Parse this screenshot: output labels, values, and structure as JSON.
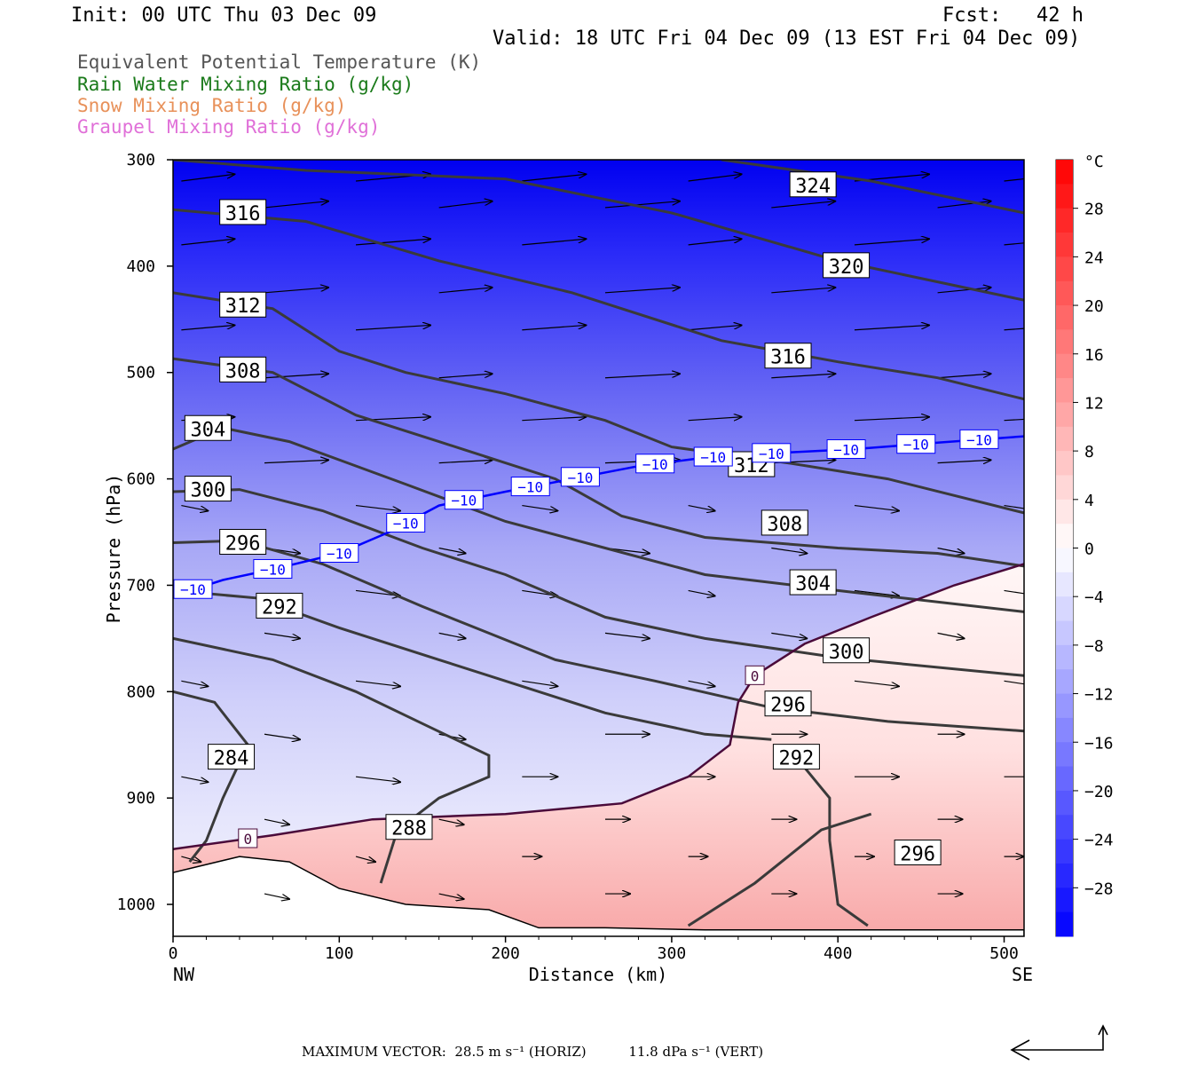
{
  "header": {
    "init": "Init: 00 UTC Thu 03 Dec 09",
    "fcst": "Fcst:   42 h",
    "valid": "Valid: 18 UTC Fri 04 Dec 09 (13 EST Fri 04 Dec 09)"
  },
  "legend": [
    {
      "label": "Equivalent Potential Temperature (K)",
      "color": "#555555"
    },
    {
      "label": "Rain Water Mixing Ratio (g/kg)",
      "color": "#1a7a1a"
    },
    {
      "label": "Snow Mixing Ratio (g/kg)",
      "color": "#e8915a"
    },
    {
      "label": "Graupel Mixing Ratio (g/kg)",
      "color": "#e070d8"
    }
  ],
  "chart_data": {
    "type": "contour cross-section",
    "xlabel": "Distance (km)",
    "ylabel": "Pressure (hPa)",
    "xlim": [
      0,
      512
    ],
    "ylim": [
      1030,
      300
    ],
    "x_ticks": [
      0,
      100,
      200,
      300,
      400,
      500
    ],
    "y_ticks": [
      300,
      400,
      500,
      600,
      700,
      800,
      900,
      1000
    ],
    "x_end_labels": {
      "left": "NW",
      "right": "SE"
    },
    "colorbar": {
      "unit": "°C",
      "tick_labels": [
        "28",
        "24",
        "20",
        "16",
        "12",
        "8",
        "4",
        "0",
        "−4",
        "−8",
        "−12",
        "−16",
        "−20",
        "−24",
        "−28"
      ],
      "range": [
        -32,
        32
      ],
      "cold_color": "#0000ff",
      "warm_color": "#ff0000"
    },
    "theta_e_contours": [
      {
        "level": 324,
        "label_at": [
          385,
          324
        ],
        "points": [
          [
            330,
            300
          ],
          [
            420,
            320
          ],
          [
            512,
            350
          ]
        ]
      },
      {
        "level": 320,
        "label_at": [
          405,
          400
        ],
        "points": [
          [
            0,
            300
          ],
          [
            80,
            310
          ],
          [
            200,
            318
          ],
          [
            300,
            350
          ],
          [
            400,
            395
          ],
          [
            512,
            432
          ]
        ]
      },
      {
        "level": 316,
        "label_at": [
          42,
          350
        ],
        "points": [
          [
            0,
            347
          ],
          [
            80,
            358
          ],
          [
            160,
            395
          ],
          [
            240,
            425
          ],
          [
            330,
            470
          ],
          [
            400,
            490
          ],
          [
            460,
            505
          ],
          [
            512,
            525
          ]
        ]
      },
      {
        "level": 316,
        "label_at": [
          370,
          485
        ],
        "points": []
      },
      {
        "level": 312,
        "label_at": [
          42,
          437
        ],
        "points": [
          [
            0,
            425
          ],
          [
            60,
            440
          ],
          [
            100,
            480
          ],
          [
            140,
            500
          ],
          [
            200,
            520
          ],
          [
            260,
            545
          ],
          [
            300,
            570
          ],
          [
            370,
            585
          ],
          [
            430,
            600
          ],
          [
            512,
            632
          ]
        ]
      },
      {
        "level": 312,
        "label_at": [
          348,
          587
        ],
        "points": []
      },
      {
        "level": 308,
        "label_at": [
          42,
          498
        ],
        "points": [
          [
            0,
            487
          ],
          [
            60,
            500
          ],
          [
            110,
            540
          ],
          [
            160,
            565
          ],
          [
            230,
            600
          ],
          [
            270,
            635
          ],
          [
            320,
            655
          ],
          [
            400,
            665
          ],
          [
            460,
            670
          ],
          [
            512,
            682
          ]
        ]
      },
      {
        "level": 308,
        "label_at": [
          368,
          642
        ],
        "points": []
      },
      {
        "level": 304,
        "label_at": [
          21,
          553
        ],
        "points": [
          [
            0,
            572
          ],
          [
            30,
            552
          ],
          [
            70,
            565
          ],
          [
            140,
            605
          ],
          [
            200,
            640
          ],
          [
            260,
            665
          ],
          [
            320,
            690
          ],
          [
            400,
            705
          ],
          [
            512,
            725
          ]
        ]
      },
      {
        "level": 304,
        "label_at": [
          385,
          698
        ],
        "points": []
      },
      {
        "level": 300,
        "label_at": [
          21,
          610
        ],
        "points": [
          [
            0,
            612
          ],
          [
            40,
            610
          ],
          [
            90,
            630
          ],
          [
            150,
            665
          ],
          [
            200,
            690
          ],
          [
            260,
            730
          ],
          [
            320,
            750
          ],
          [
            400,
            768
          ],
          [
            512,
            785
          ]
        ]
      },
      {
        "level": 300,
        "label_at": [
          405,
          762
        ],
        "points": []
      },
      {
        "level": 296,
        "label_at": [
          42,
          660
        ],
        "points": [
          [
            0,
            660
          ],
          [
            40,
            658
          ],
          [
            90,
            680
          ],
          [
            150,
            720
          ],
          [
            190,
            745
          ],
          [
            230,
            770
          ],
          [
            290,
            790
          ],
          [
            360,
            815
          ],
          [
            430,
            828
          ],
          [
            512,
            837
          ]
        ]
      },
      {
        "level": 296,
        "label_at": [
          370,
          812
        ],
        "points": []
      },
      {
        "level": 296,
        "label_at": [
          448,
          952
        ],
        "points": [
          [
            310,
            1020
          ],
          [
            350,
            980
          ],
          [
            390,
            930
          ],
          [
            420,
            915
          ]
        ]
      },
      {
        "level": 292,
        "label_at": [
          64,
          720
        ],
        "points": [
          [
            0,
            705
          ],
          [
            50,
            712
          ],
          [
            100,
            740
          ],
          [
            160,
            770
          ],
          [
            210,
            795
          ],
          [
            260,
            820
          ],
          [
            320,
            840
          ],
          [
            360,
            845
          ]
        ]
      },
      {
        "level": 292,
        "label_at": [
          375,
          862
        ],
        "points": [
          [
            375,
            862
          ],
          [
            395,
            900
          ],
          [
            395,
            940
          ],
          [
            400,
            1000
          ],
          [
            418,
            1020
          ]
        ]
      },
      {
        "level": 288,
        "label_at": [
          142,
          928
        ],
        "points": [
          [
            0,
            750
          ],
          [
            60,
            770
          ],
          [
            110,
            800
          ],
          [
            150,
            830
          ],
          [
            190,
            860
          ],
          [
            190,
            880
          ],
          [
            160,
            900
          ],
          [
            135,
            930
          ],
          [
            125,
            980
          ]
        ]
      },
      {
        "level": 284,
        "label_at": [
          35,
          862
        ],
        "points": [
          [
            0,
            800
          ],
          [
            25,
            810
          ],
          [
            45,
            850
          ],
          [
            30,
            900
          ],
          [
            20,
            940
          ],
          [
            10,
            960
          ]
        ]
      }
    ],
    "isotherm_contours": [
      {
        "level": -10,
        "color": "#0000ff",
        "label_positions_km": [
          12,
          60,
          100,
          140,
          175,
          215,
          245,
          290,
          325,
          360,
          405,
          447,
          485
        ]
      },
      {
        "level": 0,
        "color": "#4a0a3a",
        "label_positions_km": [
          45,
          350
        ]
      }
    ],
    "wind_vectors": "horizontal/vertical circulation vectors",
    "max_vector_note": "MAXIMUM VECTOR:  28.5 m s⁻¹ (HORIZ)          11.8 dPa s⁻¹ (VERT)"
  },
  "labels": {
    "nw": "NW",
    "se": "SE",
    "xlabel": "Distance (km)",
    "ylabel": "Pressure (hPa)",
    "colorbar_unit": "°C",
    "footer": "MAXIMUM VECTOR:  28.5 m s⁻¹ (HORIZ)          11.8 dPa s⁻¹ (VERT)"
  }
}
